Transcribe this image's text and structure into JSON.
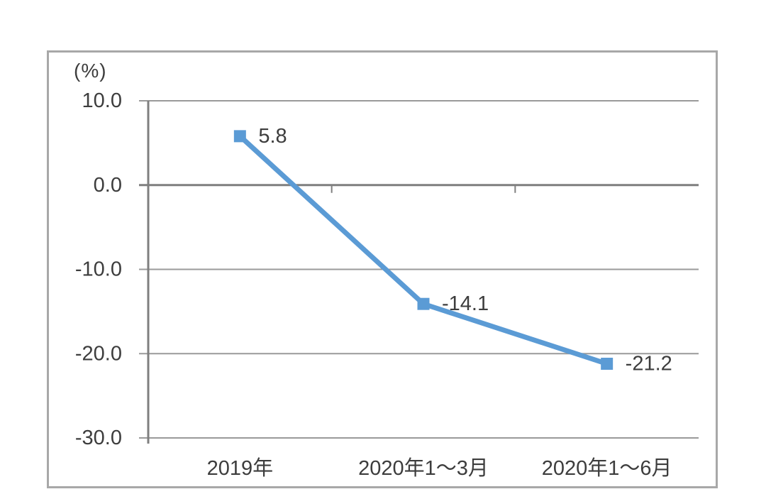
{
  "chart_data": {
    "type": "line",
    "title": "",
    "unit_label": "(%)",
    "categories": [
      "2019年",
      "2020年1～3月",
      "2020年1～6月"
    ],
    "values": [
      5.8,
      -14.1,
      -21.2
    ],
    "data_labels": [
      "5.8",
      "-14.1",
      "-21.2"
    ],
    "ylim": [
      -30,
      10
    ],
    "ytick_step": 10,
    "yticks": [
      10.0,
      0.0,
      -10.0,
      -20.0,
      -30.0
    ],
    "ytick_labels": [
      "10.0",
      "0.0",
      "-10.0",
      "-20.0",
      "-30.0"
    ],
    "xlabel": "",
    "ylabel": "(%)",
    "grid": true,
    "legend": "none",
    "marker": "square",
    "colors": {
      "line": "#5B9BD5",
      "marker": "#5B9BD5",
      "grid": "#9a9a9a",
      "axis": "#7f7f7f",
      "text": "#3d3d3d",
      "frame": "#a8a8a8",
      "background": "#ffffff"
    }
  }
}
